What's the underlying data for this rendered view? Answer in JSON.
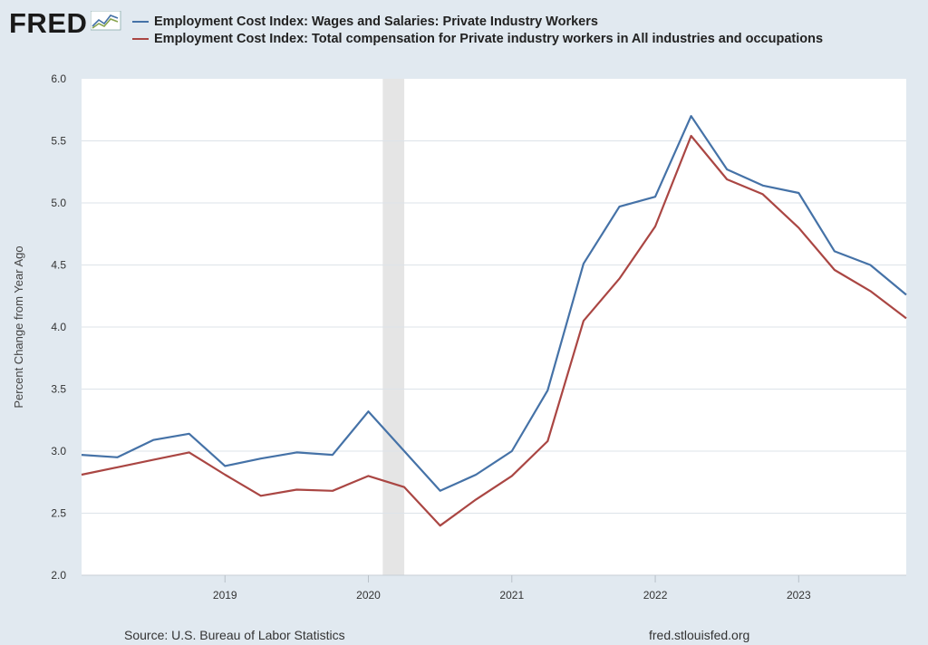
{
  "header": {
    "logo_text": "FRED",
    "logo_icon": "fred-sparkline-icon"
  },
  "footer": {
    "source": "Source: U.S. Bureau of Labor Statistics",
    "credit": "fred.stlouisfed.org"
  },
  "colors": {
    "background": "#e1e9f0",
    "plot_bg": "#ffffff",
    "grid": "#dde3e9",
    "recession": "#e5e5e5",
    "series1": "#4572a7",
    "series2": "#aa4643"
  },
  "chart_data": {
    "type": "line",
    "title": "",
    "xlabel": "",
    "ylabel": "Percent Change from Year Ago",
    "ylim": [
      2.0,
      6.0
    ],
    "yticks": [
      "2.0",
      "2.5",
      "3.0",
      "3.5",
      "4.0",
      "4.5",
      "5.0",
      "5.5",
      "6.0"
    ],
    "xlim": [
      2018.0,
      2023.75
    ],
    "xticks": [
      {
        "value": 2019.0,
        "label": "2019"
      },
      {
        "value": 2020.0,
        "label": "2020"
      },
      {
        "value": 2021.0,
        "label": "2021"
      },
      {
        "value": 2022.0,
        "label": "2022"
      },
      {
        "value": 2023.0,
        "label": "2023"
      }
    ],
    "grid": true,
    "recession_shading": [
      {
        "start": 2020.1,
        "end": 2020.25
      }
    ],
    "x": [
      2018.0,
      2018.25,
      2018.5,
      2018.75,
      2019.0,
      2019.25,
      2019.5,
      2019.75,
      2020.0,
      2020.25,
      2020.5,
      2020.75,
      2021.0,
      2021.25,
      2021.5,
      2021.75,
      2022.0,
      2022.25,
      2022.5,
      2022.75,
      2023.0,
      2023.25,
      2023.5,
      2023.75
    ],
    "series": [
      {
        "name": "Employment Cost Index: Wages and Salaries: Private Industry Workers",
        "color": "#4572a7",
        "values": [
          2.97,
          2.95,
          3.09,
          3.14,
          2.88,
          2.94,
          2.99,
          2.97,
          3.32,
          3.0,
          2.68,
          2.81,
          3.0,
          3.49,
          4.51,
          4.97,
          5.05,
          5.7,
          5.27,
          5.14,
          5.08,
          4.61,
          4.5,
          4.26
        ]
      },
      {
        "name": "Employment Cost Index: Total compensation for Private industry workers in All industries and occupations",
        "color": "#aa4643",
        "values": [
          2.81,
          2.87,
          2.93,
          2.99,
          2.81,
          2.64,
          2.69,
          2.68,
          2.8,
          2.71,
          2.4,
          2.61,
          2.8,
          3.08,
          4.05,
          4.39,
          4.81,
          5.54,
          5.19,
          5.07,
          4.8,
          4.46,
          4.29,
          4.07
        ]
      }
    ]
  }
}
